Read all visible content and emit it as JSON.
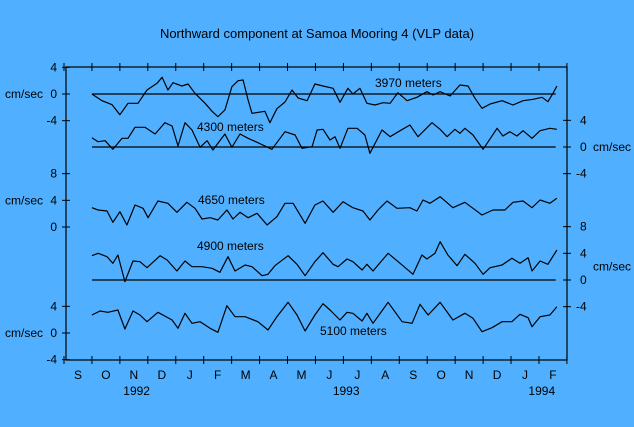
{
  "chart_data": {
    "type": "line",
    "title": "Northward component at Samoa Mooring 4 (VLP data)",
    "unit_label": "cm/sec",
    "x_axis": {
      "unit": "months since 1 Sep 1992",
      "range": [
        0,
        18
      ],
      "month_labels": [
        "S",
        "O",
        "N",
        "D",
        "J",
        "F",
        "M",
        "A",
        "M",
        "J",
        "J",
        "A",
        "S",
        "O",
        "N",
        "D",
        "J",
        "F"
      ],
      "year_labels": [
        {
          "label": "1992",
          "month_index": 2.6
        },
        {
          "label": "1993",
          "month_index": 10.1
        },
        {
          "label": "1994",
          "month_index": 17.1
        }
      ]
    },
    "left_axes": [
      {
        "ticks": [
          4,
          0,
          -4
        ],
        "offset_series": "3970 meters"
      },
      {
        "ticks": [
          8,
          4,
          0
        ],
        "offset_series": "4650 meters"
      },
      {
        "ticks": [
          4,
          0,
          -4
        ],
        "offset_series": "5100 meters"
      }
    ],
    "right_axes": [
      {
        "ticks": [
          4,
          0,
          -4
        ],
        "offset_series": "4300 meters"
      },
      {
        "ticks": [
          8,
          4,
          0,
          -4
        ],
        "offset_series": "4900 meters"
      }
    ],
    "series": [
      {
        "name": "3970 meters",
        "zero_line": true,
        "points": [
          [
            1.0,
            0
          ],
          [
            1.36,
            -1
          ],
          [
            1.72,
            -1.6
          ],
          [
            2.0,
            -3.1
          ],
          [
            2.29,
            -1.4
          ],
          [
            2.65,
            -1.4
          ],
          [
            2.97,
            0.6
          ],
          [
            3.33,
            1.6
          ],
          [
            3.51,
            2.5
          ],
          [
            3.72,
            0.6
          ],
          [
            3.9,
            1.7
          ],
          [
            4.22,
            1.2
          ],
          [
            4.44,
            1.5
          ],
          [
            4.69,
            0.1
          ],
          [
            5.05,
            -1.4
          ],
          [
            5.3,
            -2.6
          ],
          [
            5.51,
            -3.4
          ],
          [
            5.76,
            -2.4
          ],
          [
            6.01,
            1.1
          ],
          [
            6.23,
            2
          ],
          [
            6.41,
            2.1
          ],
          [
            6.59,
            -0.9
          ],
          [
            6.73,
            -2.9
          ],
          [
            7.19,
            -2.6
          ],
          [
            7.37,
            -4.3
          ],
          [
            7.62,
            -2.2
          ],
          [
            7.91,
            -1.2
          ],
          [
            8.16,
            0.6
          ],
          [
            8.38,
            -0.6
          ],
          [
            8.7,
            -1
          ],
          [
            8.98,
            1.5
          ],
          [
            9.27,
            1.2
          ],
          [
            9.63,
            0.85
          ],
          [
            9.88,
            -1.25
          ],
          [
            10.16,
            0.85
          ],
          [
            10.34,
            0
          ],
          [
            10.59,
            0.85
          ],
          [
            10.84,
            -1.4
          ],
          [
            11.13,
            -1.65
          ],
          [
            11.42,
            -1.3
          ],
          [
            11.67,
            -1.4
          ],
          [
            11.95,
            0.2
          ],
          [
            12.28,
            -1
          ],
          [
            12.63,
            -0.5
          ],
          [
            12.99,
            0.35
          ],
          [
            13.21,
            -0.15
          ],
          [
            13.46,
            0.35
          ],
          [
            13.82,
            -0.3
          ],
          [
            14.17,
            1.35
          ],
          [
            14.46,
            1.2
          ],
          [
            14.71,
            -0.65
          ],
          [
            14.96,
            -2.15
          ],
          [
            15.25,
            -1.5
          ],
          [
            15.68,
            -1
          ],
          [
            16.07,
            -1.65
          ],
          [
            16.43,
            -1
          ],
          [
            16.79,
            -0.8
          ],
          [
            17.11,
            -0.5
          ],
          [
            17.32,
            -1.15
          ],
          [
            17.5,
            0.1
          ],
          [
            17.64,
            1.2
          ]
        ]
      },
      {
        "name": "4300 meters",
        "zero_line": true,
        "points": [
          [
            1.0,
            1.4
          ],
          [
            1.22,
            0.8
          ],
          [
            1.47,
            0.95
          ],
          [
            1.75,
            -0.35
          ],
          [
            2.08,
            1.3
          ],
          [
            2.29,
            1.3
          ],
          [
            2.54,
            2.95
          ],
          [
            2.9,
            2.95
          ],
          [
            3.26,
            1.95
          ],
          [
            3.61,
            3.65
          ],
          [
            3.87,
            3.15
          ],
          [
            4.08,
            0.15
          ],
          [
            4.33,
            3.65
          ],
          [
            4.58,
            2.55
          ],
          [
            4.87,
            -0.05
          ],
          [
            5.12,
            0.95
          ],
          [
            5.33,
            -0.45
          ],
          [
            5.76,
            1.95
          ],
          [
            6.01,
            -0.05
          ],
          [
            6.3,
            1.95
          ],
          [
            6.59,
            1.3
          ],
          [
            6.94,
            0.65
          ],
          [
            7.44,
            -0.35
          ],
          [
            7.91,
            2.3
          ],
          [
            8.27,
            1.8
          ],
          [
            8.52,
            -0.2
          ],
          [
            8.88,
            0.05
          ],
          [
            9.06,
            2.55
          ],
          [
            9.27,
            2.65
          ],
          [
            9.52,
            1.05
          ],
          [
            9.7,
            1.55
          ],
          [
            9.88,
            -0.2
          ],
          [
            10.16,
            2.8
          ],
          [
            10.49,
            2.8
          ],
          [
            10.77,
            1.8
          ],
          [
            10.95,
            -0.95
          ],
          [
            11.38,
            2.55
          ],
          [
            11.67,
            1.55
          ],
          [
            12.03,
            2.45
          ],
          [
            12.38,
            3.3
          ],
          [
            12.67,
            1.55
          ],
          [
            13.17,
            3.65
          ],
          [
            13.46,
            2.65
          ],
          [
            13.71,
            1.55
          ],
          [
            13.99,
            2.65
          ],
          [
            14.17,
            2.05
          ],
          [
            14.35,
            2.8
          ],
          [
            14.64,
            1.8
          ],
          [
            15.0,
            -0.35
          ],
          [
            15.5,
            2.8
          ],
          [
            15.71,
            1.65
          ],
          [
            15.96,
            2.3
          ],
          [
            16.21,
            1.65
          ],
          [
            16.43,
            2.45
          ],
          [
            16.75,
            1.3
          ],
          [
            17.04,
            2.45
          ],
          [
            17.39,
            2.8
          ],
          [
            17.64,
            2.65
          ]
        ]
      },
      {
        "name": "4650 meters",
        "zero_line": false,
        "points": [
          [
            1.0,
            2.9
          ],
          [
            1.22,
            2.55
          ],
          [
            1.54,
            2.4
          ],
          [
            1.75,
            0.7
          ],
          [
            2.0,
            2.3
          ],
          [
            2.25,
            0.3
          ],
          [
            2.54,
            3.3
          ],
          [
            2.83,
            2.8
          ],
          [
            3.01,
            1.4
          ],
          [
            3.36,
            3.9
          ],
          [
            3.72,
            3.55
          ],
          [
            4.04,
            2.2
          ],
          [
            4.4,
            3.7
          ],
          [
            4.69,
            2.8
          ],
          [
            4.94,
            1.2
          ],
          [
            5.23,
            1.4
          ],
          [
            5.51,
            1.05
          ],
          [
            5.83,
            2.55
          ],
          [
            6.05,
            1.2
          ],
          [
            6.3,
            2.2
          ],
          [
            6.59,
            1.4
          ],
          [
            6.91,
            2.05
          ],
          [
            7.27,
            0.3
          ],
          [
            7.62,
            1.55
          ],
          [
            7.91,
            3.55
          ],
          [
            8.2,
            3.55
          ],
          [
            8.63,
            0.55
          ],
          [
            8.98,
            3.3
          ],
          [
            9.27,
            3.9
          ],
          [
            9.63,
            2.2
          ],
          [
            9.99,
            3.8
          ],
          [
            10.34,
            2.9
          ],
          [
            10.7,
            2.4
          ],
          [
            10.95,
            1.05
          ],
          [
            11.24,
            2.55
          ],
          [
            11.56,
            3.9
          ],
          [
            11.92,
            2.8
          ],
          [
            12.38,
            2.9
          ],
          [
            12.63,
            2.4
          ],
          [
            12.85,
            4.05
          ],
          [
            13.1,
            3.55
          ],
          [
            13.46,
            4.55
          ],
          [
            13.92,
            2.9
          ],
          [
            14.35,
            3.7
          ],
          [
            14.64,
            2.8
          ],
          [
            14.96,
            1.8
          ],
          [
            15.35,
            2.55
          ],
          [
            15.78,
            2.55
          ],
          [
            16.07,
            3.7
          ],
          [
            16.43,
            3.9
          ],
          [
            16.75,
            2.9
          ],
          [
            17.04,
            4.05
          ],
          [
            17.39,
            3.55
          ],
          [
            17.64,
            4.3
          ]
        ]
      },
      {
        "name": "4900 meters",
        "zero_line": true,
        "points": [
          [
            1.0,
            3.65
          ],
          [
            1.22,
            4
          ],
          [
            1.54,
            3.5
          ],
          [
            1.75,
            2.5
          ],
          [
            1.93,
            3.75
          ],
          [
            2.18,
            -0.25
          ],
          [
            2.47,
            2.85
          ],
          [
            2.72,
            2.75
          ],
          [
            2.97,
            1.85
          ],
          [
            3.44,
            3.65
          ],
          [
            3.69,
            3
          ],
          [
            4.04,
            1.35
          ],
          [
            4.33,
            2.85
          ],
          [
            4.58,
            2
          ],
          [
            4.94,
            2
          ],
          [
            5.3,
            1.75
          ],
          [
            5.58,
            1.15
          ],
          [
            5.87,
            3.5
          ],
          [
            6.12,
            1.35
          ],
          [
            6.48,
            2.25
          ],
          [
            6.73,
            2
          ],
          [
            7.09,
            0.65
          ],
          [
            7.3,
            0.85
          ],
          [
            7.55,
            2.15
          ],
          [
            8.02,
            3.65
          ],
          [
            8.34,
            2.35
          ],
          [
            8.63,
            0.65
          ],
          [
            8.98,
            2.75
          ],
          [
            9.27,
            4.1
          ],
          [
            9.63,
            2.35
          ],
          [
            9.81,
            2
          ],
          [
            10.13,
            3.15
          ],
          [
            10.34,
            2.75
          ],
          [
            10.67,
            1.5
          ],
          [
            10.84,
            2.35
          ],
          [
            11.06,
            1.35
          ],
          [
            11.6,
            4
          ],
          [
            12.03,
            2.5
          ],
          [
            12.49,
            0.85
          ],
          [
            12.81,
            3.75
          ],
          [
            12.99,
            3.15
          ],
          [
            13.28,
            4
          ],
          [
            13.46,
            5.75
          ],
          [
            13.74,
            3.75
          ],
          [
            14.07,
            2.15
          ],
          [
            14.35,
            3.85
          ],
          [
            14.71,
            2.5
          ],
          [
            15.0,
            0.85
          ],
          [
            15.25,
            1.85
          ],
          [
            15.68,
            2.25
          ],
          [
            16.03,
            3.25
          ],
          [
            16.32,
            2.5
          ],
          [
            16.61,
            3.35
          ],
          [
            16.75,
            1.35
          ],
          [
            17.04,
            2.85
          ],
          [
            17.32,
            2.35
          ],
          [
            17.64,
            4.5
          ]
        ]
      },
      {
        "name": "5100 meters",
        "zero_line": false,
        "points": [
          [
            1.0,
            2.7
          ],
          [
            1.29,
            3.3
          ],
          [
            1.57,
            3.1
          ],
          [
            1.93,
            3.45
          ],
          [
            2.18,
            0.6
          ],
          [
            2.47,
            3.3
          ],
          [
            2.72,
            2.7
          ],
          [
            2.97,
            1.7
          ],
          [
            3.36,
            3.1
          ],
          [
            3.87,
            1.95
          ],
          [
            4.08,
            0.7
          ],
          [
            4.33,
            2.95
          ],
          [
            4.58,
            1.45
          ],
          [
            4.87,
            1.7
          ],
          [
            5.23,
            0.7
          ],
          [
            5.51,
            0.1
          ],
          [
            5.83,
            4.1
          ],
          [
            6.12,
            2.45
          ],
          [
            6.48,
            2.45
          ],
          [
            6.94,
            1.7
          ],
          [
            7.3,
            0.45
          ],
          [
            7.62,
            2.45
          ],
          [
            8.02,
            4.6
          ],
          [
            8.34,
            2.7
          ],
          [
            8.63,
            0.3
          ],
          [
            8.98,
            2.7
          ],
          [
            9.27,
            4.4
          ],
          [
            9.52,
            3.45
          ],
          [
            9.88,
            1.95
          ],
          [
            10.13,
            3.1
          ],
          [
            10.34,
            2.95
          ],
          [
            10.67,
            1.8
          ],
          [
            10.84,
            2.95
          ],
          [
            11.06,
            1.45
          ],
          [
            11.6,
            4.6
          ],
          [
            12.1,
            1.7
          ],
          [
            12.46,
            1.45
          ],
          [
            12.74,
            4.3
          ],
          [
            13.03,
            2.7
          ],
          [
            13.46,
            4.6
          ],
          [
            13.92,
            1.95
          ],
          [
            14.35,
            2.95
          ],
          [
            14.64,
            2.2
          ],
          [
            14.96,
            0.2
          ],
          [
            15.32,
            0.8
          ],
          [
            15.68,
            1.7
          ],
          [
            16.03,
            1.7
          ],
          [
            16.32,
            2.8
          ],
          [
            16.61,
            2.3
          ],
          [
            16.75,
            0.95
          ],
          [
            17.04,
            2.45
          ],
          [
            17.39,
            2.7
          ],
          [
            17.64,
            3.95
          ]
        ]
      }
    ]
  }
}
